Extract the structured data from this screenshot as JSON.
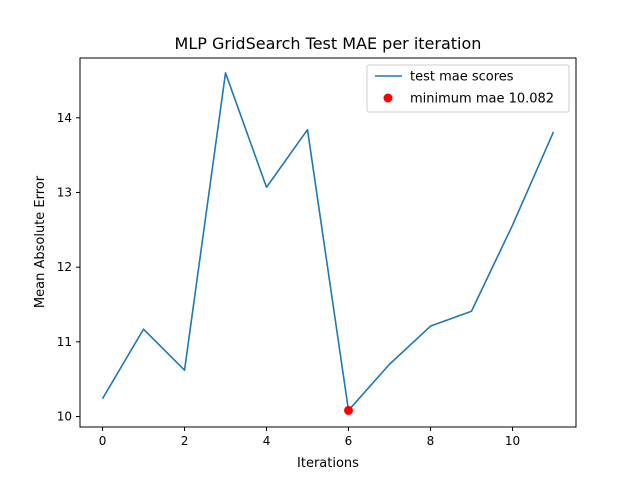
{
  "chart_data": {
    "type": "line",
    "title": "MLP GridSearch Test MAE per iteration",
    "xlabel": "Iterations",
    "ylabel": "Mean Absolute Error",
    "xlim": [
      -0.55,
      11.55
    ],
    "ylim": [
      9.86,
      14.8
    ],
    "xticks": [
      0,
      2,
      4,
      6,
      8,
      10
    ],
    "yticks": [
      10,
      11,
      12,
      13,
      14
    ],
    "grid": false,
    "legend_position": "top-right",
    "series": [
      {
        "name": "test mae scores",
        "type": "line",
        "color": "#1f77b4",
        "x": [
          0,
          1,
          2,
          3,
          4,
          5,
          6,
          7,
          8,
          9,
          10,
          11
        ],
        "y": [
          10.24,
          11.17,
          10.62,
          14.6,
          13.07,
          13.84,
          10.082,
          10.7,
          11.21,
          11.41,
          12.56,
          13.81
        ]
      },
      {
        "name": "minimum mae 10.082",
        "type": "scatter",
        "color": "#ff0000",
        "x": [
          6
        ],
        "y": [
          10.082
        ]
      }
    ]
  }
}
